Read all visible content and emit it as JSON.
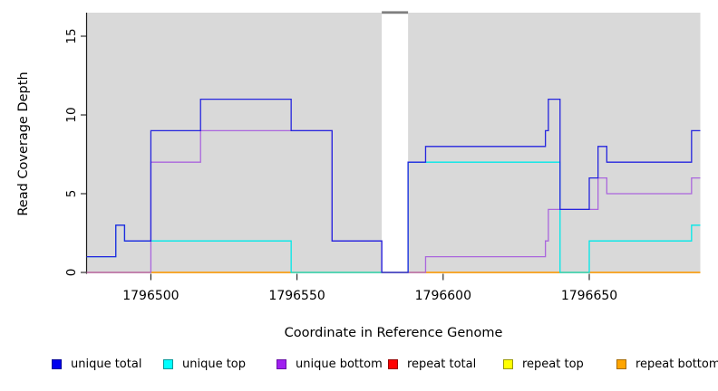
{
  "figure": {
    "x_axis_label": "Coordinate in Reference Genome",
    "y_axis_label": "Read Coverage Depth",
    "panel_background": "#d9d9d9",
    "gap_bar_color": "#7f7f7f",
    "axis_color": "#1a1a1a"
  },
  "chart_data": {
    "type": "line",
    "subtype": "step-coverage",
    "title": "",
    "xlabel": "Coordinate in Reference Genome",
    "ylabel": "Read Coverage Depth",
    "xlim": [
      1796478,
      1796688
    ],
    "ylim": [
      0,
      16.5
    ],
    "x_ticks": [
      1796500,
      1796550,
      1796600,
      1796650
    ],
    "y_ticks": [
      0,
      5,
      10,
      15
    ],
    "grid": false,
    "legend_position": "bottom",
    "covered_regions": [
      [
        1796478,
        1796579
      ],
      [
        1796588,
        1796688
      ]
    ],
    "gap_region": [
      1796579,
      1796588
    ],
    "series": [
      {
        "name": "repeat total",
        "color": "#EE2222",
        "swatch": "#FF0000",
        "border": "#990000",
        "steps": [
          [
            1796478,
            0
          ]
        ]
      },
      {
        "name": "repeat top",
        "color": "#F5F500",
        "swatch": "#FFFF00",
        "border": "#999900",
        "steps": [
          [
            1796478,
            0
          ]
        ]
      },
      {
        "name": "repeat bottom",
        "color": "#FF9D00",
        "swatch": "#FFA500",
        "border": "#A66B00",
        "steps": [
          [
            1796478,
            0
          ]
        ]
      },
      {
        "name": "unique top",
        "color": "#00E8E8",
        "swatch": "#00FFFF",
        "border": "#009999",
        "steps": [
          [
            1796478,
            1
          ],
          [
            1796488,
            3
          ],
          [
            1796491,
            2
          ],
          [
            1796548,
            0
          ],
          [
            1796588,
            7
          ],
          [
            1796640,
            0
          ],
          [
            1796650,
            2
          ],
          [
            1796685,
            3
          ]
        ]
      },
      {
        "name": "unique bottom",
        "color": "#AA66DD",
        "swatch": "#A020F0",
        "border": "#6A11A8",
        "steps": [
          [
            1796478,
            0
          ],
          [
            1796500,
            7
          ],
          [
            1796517,
            9
          ],
          [
            1796562,
            2
          ],
          [
            1796579,
            0
          ],
          [
            1796594,
            1
          ],
          [
            1796635,
            2
          ],
          [
            1796636,
            4
          ],
          [
            1796653,
            6
          ],
          [
            1796656,
            5
          ],
          [
            1796685,
            6
          ]
        ]
      },
      {
        "name": "unique total",
        "color": "#2525DE",
        "swatch": "#0000EE",
        "border": "#000099",
        "steps": [
          [
            1796478,
            1
          ],
          [
            1796488,
            3
          ],
          [
            1796491,
            2
          ],
          [
            1796500,
            9
          ],
          [
            1796517,
            11
          ],
          [
            1796548,
            9
          ],
          [
            1796562,
            2
          ],
          [
            1796579,
            0
          ],
          [
            1796588,
            7
          ],
          [
            1796594,
            8
          ],
          [
            1796635,
            9
          ],
          [
            1796636,
            11
          ],
          [
            1796640,
            4
          ],
          [
            1796650,
            6
          ],
          [
            1796653,
            8
          ],
          [
            1796656,
            7
          ],
          [
            1796685,
            9
          ]
        ]
      }
    ],
    "legend_order": [
      "unique total",
      "unique top",
      "unique bottom",
      "repeat total",
      "repeat top",
      "repeat bottom"
    ]
  }
}
